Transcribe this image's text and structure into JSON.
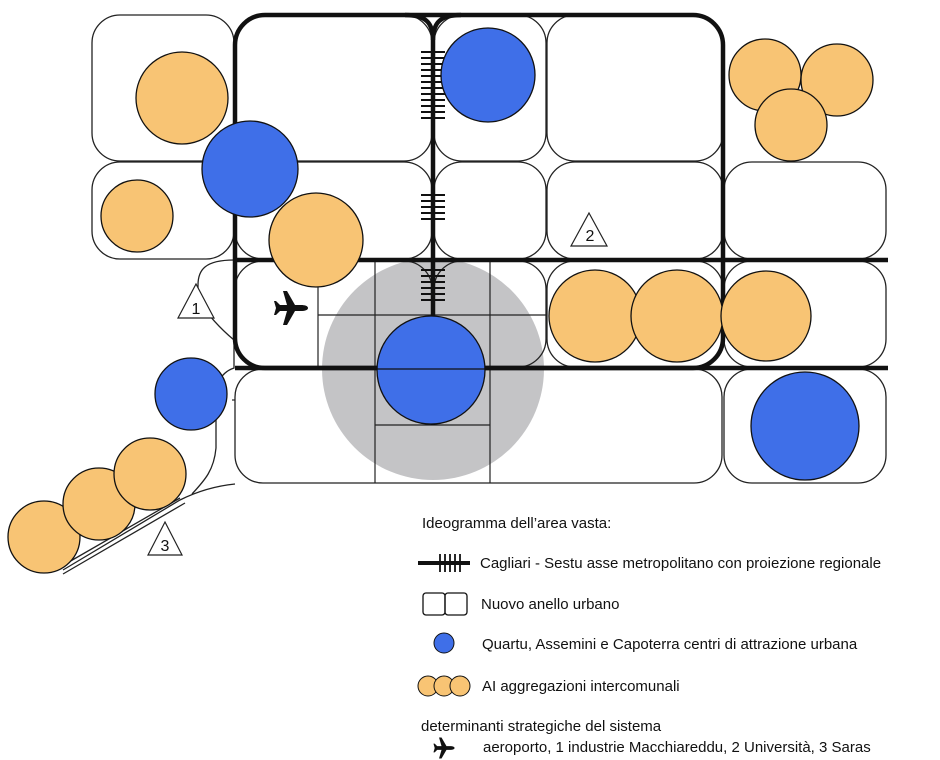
{
  "colors": {
    "blue": "#3f6fe8",
    "orange": "#f8c474",
    "gray_area": "#c4c4c6",
    "stroke": "#111111",
    "thin_line": "#222222"
  },
  "markers": [
    {
      "id": "1",
      "label": "1"
    },
    {
      "id": "2",
      "label": "2"
    },
    {
      "id": "3",
      "label": "3"
    }
  ],
  "icons": {
    "airport": "airplane-icon",
    "rail_axis": "rail-axis-icon"
  },
  "legend": {
    "title": "Ideogramma dell’area vasta:",
    "axis": "Cagliari - Sestu asse metropolitano con proiezione regionale",
    "ring": "Nuovo anello urbano",
    "centers": "Quartu, Assemini e Capoterra centri di attrazione urbana",
    "aggregations": "AI aggregazioni intercomunali",
    "strategic_title": "determinanti strategiche del sistema",
    "strategic_items": "aeroporto, 1 industrie Macchiareddu, 2 Università, 3 Saras"
  }
}
